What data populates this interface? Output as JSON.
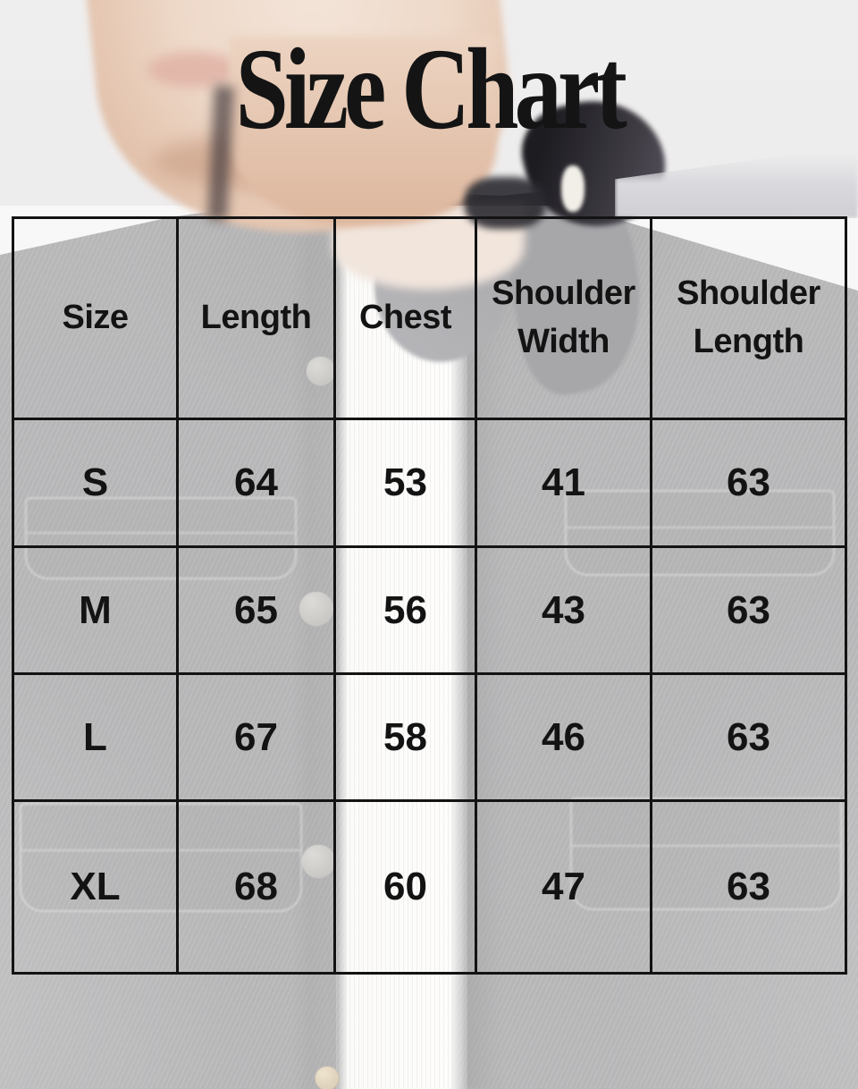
{
  "title": "Size Chart",
  "table": {
    "headers": [
      "Size",
      "Length",
      "Chest",
      "Shoulder Width",
      "Shoulder Length"
    ],
    "rows": [
      [
        "S",
        "64",
        "53",
        "41",
        "63"
      ],
      [
        "M",
        "65",
        "56",
        "43",
        "63"
      ],
      [
        "L",
        "67",
        "58",
        "46",
        "63"
      ],
      [
        "XL",
        "68",
        "60",
        "47",
        "63"
      ]
    ]
  },
  "chart_data": {
    "type": "table",
    "title": "Size Chart",
    "columns": [
      "Size",
      "Length",
      "Chest",
      "Shoulder Width",
      "Shoulder Length"
    ],
    "rows": [
      {
        "Size": "S",
        "Length": 64,
        "Chest": 53,
        "Shoulder Width": 41,
        "Shoulder Length": 63
      },
      {
        "Size": "M",
        "Length": 65,
        "Chest": 56,
        "Shoulder Width": 43,
        "Shoulder Length": 63
      },
      {
        "Size": "L",
        "Length": 67,
        "Chest": 58,
        "Shoulder Width": 46,
        "Shoulder Length": 63
      },
      {
        "Size": "XL",
        "Length": 68,
        "Chest": 60,
        "Shoulder Width": 47,
        "Shoulder Length": 63
      }
    ]
  },
  "colors": {
    "page_background": "#eeeded",
    "table_border": "#131313",
    "text": "#131313",
    "jacket_faded_gray": "#bfbfc1",
    "tee_white": "#fbfaf8",
    "skin_tone": "#e9d2c0"
  },
  "background_photo": {
    "alt": "Faded photo of a model wearing a dark denim overshirt over a white ribbed tee"
  }
}
